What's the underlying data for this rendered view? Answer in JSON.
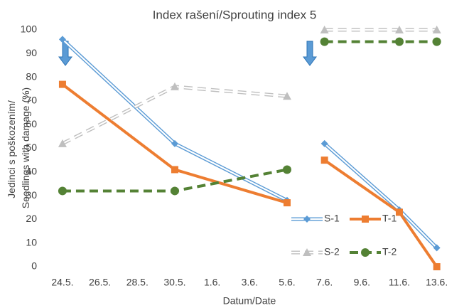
{
  "chart_data": {
    "type": "line",
    "title": "Index rašení/Sprouting index 5",
    "xlabel": "Datum/Date",
    "ylabel": [
      "Jedinci s poškozením/",
      "Seedlings with damage (%)"
    ],
    "categories": [
      "24.5.",
      "26.5.",
      "28.5.",
      "30.5.",
      "1.6.",
      "3.6.",
      "5.6.",
      "7.6.",
      "9.6.",
      "11.6.",
      "13.6."
    ],
    "ylim": [
      0,
      100
    ],
    "yticks": [
      0,
      10,
      20,
      30,
      40,
      50,
      60,
      70,
      80,
      90,
      100
    ],
    "grid": false,
    "legend": "lower right",
    "series": [
      {
        "name": "S-1",
        "color": "#5b9bd5",
        "marker": "diamond",
        "double": true,
        "dashed": false,
        "values": [
          96,
          null,
          null,
          52,
          null,
          null,
          28,
          52,
          null,
          24,
          8
        ]
      },
      {
        "name": "T-1",
        "color": "#ed7d31",
        "marker": "square",
        "double": false,
        "dashed": false,
        "values": [
          77,
          null,
          null,
          41,
          null,
          null,
          27,
          45,
          null,
          23,
          0
        ]
      },
      {
        "name": "S-2",
        "color": "#bfbfbf",
        "marker": "triangle",
        "double": true,
        "dashed": true,
        "values": [
          52,
          null,
          null,
          76,
          null,
          null,
          72,
          100,
          null,
          100,
          100
        ]
      },
      {
        "name": "T-2",
        "color": "#548235",
        "marker": "circle",
        "double": false,
        "dashed": true,
        "values": [
          32,
          null,
          null,
          32,
          null,
          null,
          41,
          95,
          null,
          95,
          95
        ]
      }
    ]
  }
}
